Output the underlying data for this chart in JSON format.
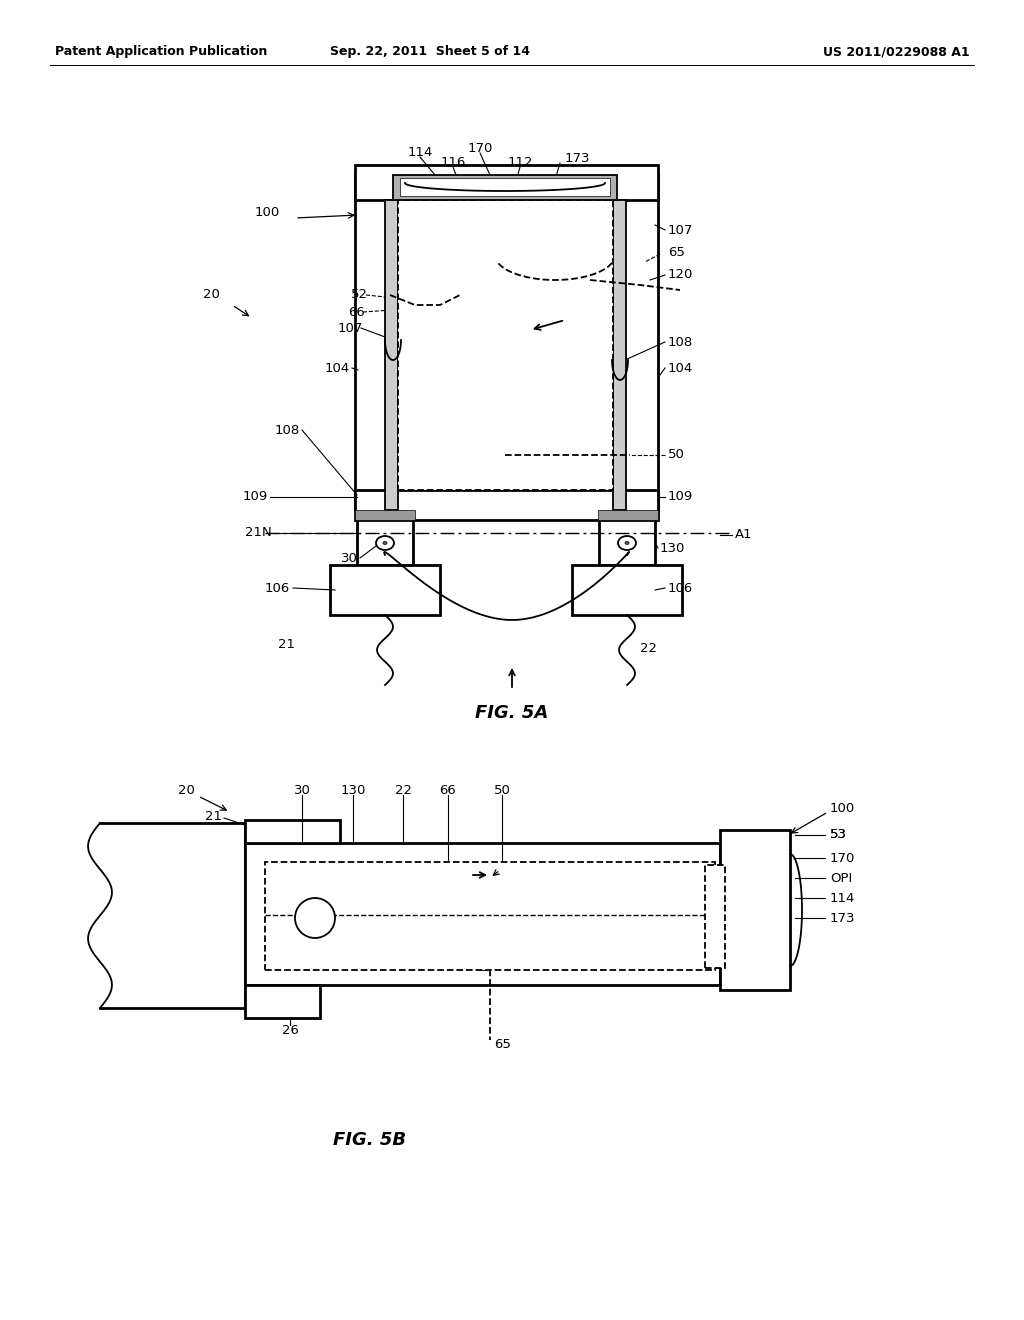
{
  "bg_color": "#ffffff",
  "line_color": "#000000",
  "header_left": "Patent Application Publication",
  "header_center": "Sep. 22, 2011  Sheet 5 of 14",
  "header_right": "US 2011/0229088 A1",
  "fig5a_label": "FIG. 5A",
  "fig5b_label": "FIG. 5B",
  "header_font_size": 9,
  "ref_font_size": 9.5,
  "fig_label_font_size": 13
}
